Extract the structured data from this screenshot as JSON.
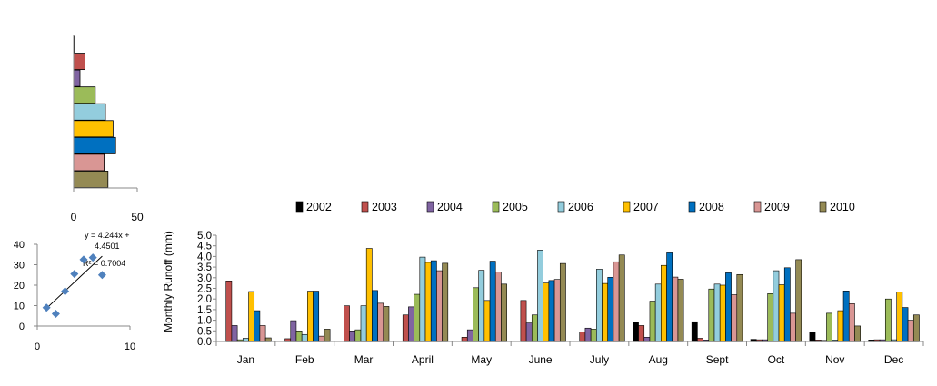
{
  "chart_data": [
    {
      "id": "annual_bars",
      "type": "bar",
      "orientation": "horizontal",
      "categories": [
        "2002",
        "2003",
        "2004",
        "2005",
        "2006",
        "2007",
        "2008",
        "2009",
        "2010"
      ],
      "values": [
        1,
        9,
        5,
        17,
        25,
        31,
        33,
        24,
        27
      ],
      "xlim": [
        0,
        50
      ],
      "xticks": [
        "0",
        "50"
      ],
      "grid": false,
      "legend": "none"
    },
    {
      "id": "regression_scatter",
      "type": "scatter",
      "points": [
        {
          "x": 1,
          "y": 9
        },
        {
          "x": 2,
          "y": 6
        },
        {
          "x": 3,
          "y": 17
        },
        {
          "x": 4,
          "y": 25.5
        },
        {
          "x": 5,
          "y": 32.5
        },
        {
          "x": 6,
          "y": 33.5
        },
        {
          "x": 7,
          "y": 25
        }
      ],
      "trendline": {
        "slope": 4.244,
        "intercept": 4.4501
      },
      "equation_line1": "y = 4.244x +",
      "equation_line2": "4.4501",
      "r2_label": "R² = 0.7004",
      "xlim": [
        0,
        10
      ],
      "ylim": [
        0,
        40
      ],
      "xticks": [
        "0",
        "10"
      ],
      "yticks": [
        "0",
        "10",
        "20",
        "30",
        "40"
      ],
      "grid": false,
      "legend": "none"
    },
    {
      "id": "monthly_runoff",
      "type": "bar",
      "ylabel": "Monthly  Runoff (mm)",
      "categories": [
        "Jan",
        "Feb",
        "Mar",
        "April",
        "May",
        "June",
        "July",
        "Aug",
        "Sept",
        "Oct",
        "Nov",
        "Dec"
      ],
      "ylim": [
        0,
        5
      ],
      "yticks": [
        "0.0",
        "0.5",
        "1.0",
        "1.5",
        "2.0",
        "2.5",
        "3.0",
        "3.5",
        "4.0",
        "4.5",
        "5.0"
      ],
      "grid": false,
      "legend": "top",
      "series": [
        {
          "name": "2002",
          "color": "#000000",
          "values": [
            0.0,
            0.0,
            0.0,
            0.0,
            0.0,
            0.0,
            0.0,
            0.9,
            0.93,
            0.1,
            0.45,
            0.07
          ]
        },
        {
          "name": "2003",
          "color": "#c0504d",
          "values": [
            2.85,
            0.13,
            1.68,
            1.25,
            0.2,
            1.93,
            0.45,
            0.75,
            0.15,
            0.08,
            0.07,
            0.08
          ]
        },
        {
          "name": "2004",
          "color": "#8064a2",
          "values": [
            0.75,
            0.98,
            0.5,
            1.63,
            0.55,
            0.87,
            0.63,
            0.2,
            0.07,
            0.08,
            0.05,
            0.08
          ]
        },
        {
          "name": "2005",
          "color": "#9bbb59",
          "values": [
            0.08,
            0.5,
            0.55,
            2.22,
            2.53,
            1.25,
            0.58,
            1.9,
            2.47,
            2.25,
            1.33,
            2.0
          ]
        },
        {
          "name": "2006",
          "color": "#93cddd",
          "values": [
            0.15,
            0.33,
            1.68,
            3.97,
            3.35,
            4.3,
            3.4,
            2.7,
            2.7,
            3.33,
            0.07,
            0.08
          ]
        },
        {
          "name": "2007",
          "color": "#ffc000",
          "values": [
            2.35,
            2.37,
            4.38,
            3.72,
            1.93,
            2.75,
            2.73,
            3.58,
            2.65,
            2.67,
            1.45,
            2.32
          ]
        },
        {
          "name": "2008",
          "color": "#0070c0",
          "values": [
            1.45,
            2.37,
            2.4,
            3.8,
            3.78,
            2.87,
            3.02,
            4.17,
            3.23,
            3.47,
            2.38,
            1.6
          ]
        },
        {
          "name": "2009",
          "color": "#d99694",
          "values": [
            0.75,
            0.25,
            1.8,
            3.33,
            3.27,
            2.92,
            3.75,
            3.03,
            2.2,
            1.33,
            1.78,
            1.0
          ]
        },
        {
          "name": "2010",
          "color": "#948a54",
          "values": [
            0.17,
            0.58,
            1.65,
            3.68,
            2.7,
            3.67,
            4.07,
            2.93,
            3.15,
            3.85,
            0.73,
            1.25
          ]
        }
      ]
    }
  ]
}
